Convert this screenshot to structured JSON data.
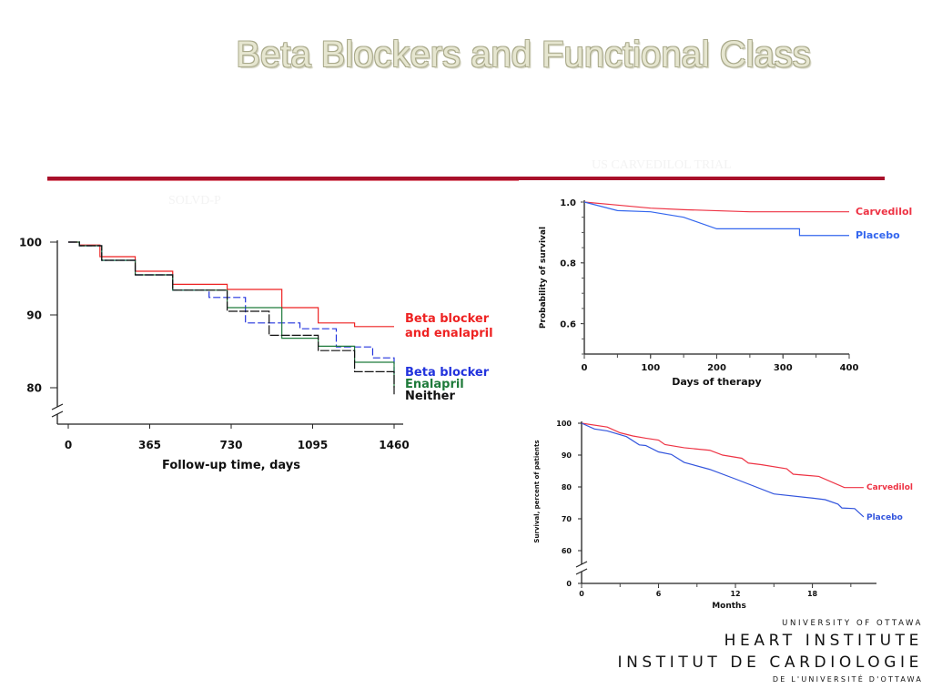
{
  "slide": {
    "title": "Beta Blockers and Functional Class",
    "label_us_trial": "US CARVEDILOL TRIAL",
    "label_solvd": "SOLVD-P",
    "accent_color": "#a8102a"
  },
  "logo": {
    "line1": "UNIVERSITY OF OTTAWA",
    "line2": "HEART INSTITUTE",
    "line3": "INSTITUT DE CARDIOLOGIE",
    "line4": "DE L'UNIVERSITÉ D'OTTAWA"
  },
  "chart_data": [
    {
      "type": "line",
      "title": "",
      "xlabel": "Follow-up time, days",
      "ylabel": "",
      "xlim": [
        0,
        1460
      ],
      "ylim": [
        80,
        100
      ],
      "axis_break": true,
      "xticks": [
        "0",
        "365",
        "730",
        "1095",
        "1460"
      ],
      "yticks": [
        "100",
        "90",
        "80"
      ],
      "grid": false,
      "series": [
        {
          "name": "Beta blocker and enalapril",
          "label_lines": [
            "Beta blocker",
            "and enalapril"
          ],
          "color": "#ee2222",
          "style": "step",
          "x": [
            0,
            50,
            142,
            300,
            468,
            712,
            957,
            1120,
            1283,
            1460
          ],
          "y": [
            100,
            99.6,
            98,
            96,
            94.2,
            93.5,
            91,
            88.9,
            88.4,
            88.4
          ]
        },
        {
          "name": "Beta blocker",
          "label_lines": [
            "Beta blocker"
          ],
          "color": "#2233dd",
          "style": "step",
          "x": [
            0,
            50,
            150,
            300,
            468,
            631,
            794,
            1038,
            1201,
            1364,
            1460
          ],
          "y": [
            100,
            99.5,
            97.5,
            95.5,
            93.4,
            92.4,
            88.9,
            88.1,
            85.6,
            84.1,
            81.5
          ]
        },
        {
          "name": "Enalapril",
          "label_lines": [
            "Enalapril"
          ],
          "color": "#1e7a3a",
          "style": "step",
          "x": [
            0,
            50,
            150,
            300,
            468,
            712,
            957,
            1120,
            1283,
            1460
          ],
          "y": [
            100,
            99.5,
            97.5,
            95.5,
            93.4,
            91,
            86.8,
            85.7,
            83.5,
            80
          ]
        },
        {
          "name": "Neither",
          "label_lines": [
            "Neither"
          ],
          "color": "#111111",
          "style": "step",
          "x": [
            0,
            50,
            150,
            300,
            468,
            712,
            900,
            1120,
            1283,
            1460
          ],
          "y": [
            100,
            99.5,
            97.5,
            95.5,
            93.4,
            90.5,
            87.2,
            85.1,
            82.2,
            79.1
          ]
        }
      ]
    },
    {
      "type": "line",
      "title": "",
      "xlabel": "Days of therapy",
      "ylabel": "Probability of survival",
      "xlim": [
        0,
        400
      ],
      "ylim": [
        0.5,
        1.0
      ],
      "xticks": [
        "0",
        "100",
        "200",
        "300",
        "400"
      ],
      "yticks": [
        "1.0",
        "0.8",
        "0.6"
      ],
      "grid": false,
      "series": [
        {
          "name": "Carvedilol",
          "color": "#ee3344",
          "style": "line",
          "x": [
            0,
            50,
            100,
            150,
            250,
            400
          ],
          "y": [
            1.0,
            0.99,
            0.98,
            0.975,
            0.968,
            0.968
          ]
        },
        {
          "name": "Placebo",
          "color": "#3366ee",
          "style": "line",
          "x": [
            0,
            50,
            100,
            150,
            200,
            325,
            325,
            400
          ],
          "y": [
            1.0,
            0.972,
            0.968,
            0.95,
            0.912,
            0.912,
            0.89,
            0.89
          ]
        }
      ]
    },
    {
      "type": "line",
      "title": "",
      "xlabel": "Months",
      "ylabel": "Survival, percent of patients",
      "xlim": [
        0,
        23
      ],
      "ylim": [
        60,
        100
      ],
      "axis_break": true,
      "xticks": [
        "0",
        "6",
        "12",
        "18"
      ],
      "yticks": [
        "100",
        "90",
        "80",
        "70",
        "60",
        "0"
      ],
      "grid": false,
      "series": [
        {
          "name": "Carvedilol",
          "color": "#ee3344",
          "style": "line",
          "x": [
            0,
            2,
            3,
            4,
            5,
            6,
            6.5,
            8,
            10,
            11,
            12.5,
            13,
            14,
            16,
            16.5,
            18.5,
            20.5,
            22
          ],
          "y": [
            100,
            98.8,
            97,
            96,
            95.3,
            94.7,
            93.3,
            92.3,
            91.5,
            90,
            89,
            87.5,
            87,
            85.7,
            84,
            83.3,
            79.8,
            79.8
          ]
        },
        {
          "name": "Placebo",
          "color": "#3355dd",
          "style": "line",
          "x": [
            0,
            1,
            2,
            3.5,
            4.5,
            5,
            6,
            7,
            8,
            10,
            12,
            15,
            18,
            19,
            20,
            20.3,
            21.3,
            22
          ],
          "y": [
            100,
            98.2,
            97.6,
            95.8,
            93.2,
            93,
            91,
            90.2,
            87.7,
            85.5,
            82.5,
            77.8,
            76.5,
            76,
            74.6,
            73.4,
            73.2,
            70.6
          ]
        }
      ]
    }
  ]
}
